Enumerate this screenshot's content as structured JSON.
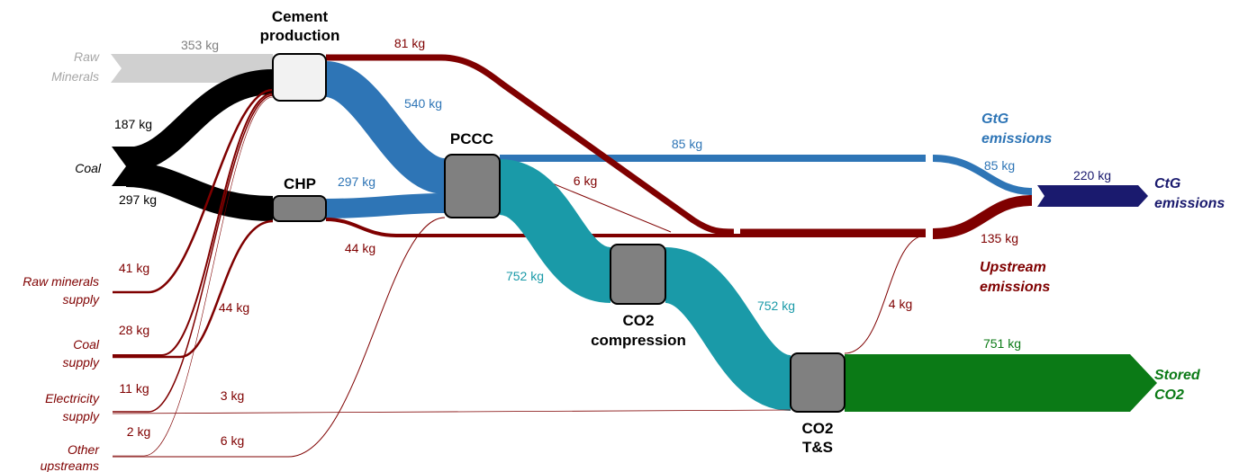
{
  "sources": [
    {
      "label": [
        "Raw",
        "Minerals"
      ]
    },
    {
      "label": [
        "Coal"
      ]
    },
    {
      "label": [
        "Raw minerals",
        "supply"
      ]
    },
    {
      "label": [
        "Coal",
        "supply"
      ]
    },
    {
      "label": [
        "Electricity",
        "supply"
      ]
    },
    {
      "label": [
        "Other",
        "upstreams"
      ]
    }
  ],
  "processes": [
    {
      "label": [
        "Cement",
        "production"
      ]
    },
    {
      "label": [
        "CHP"
      ]
    },
    {
      "label": [
        "PCCC"
      ]
    },
    {
      "label": [
        "CO2",
        "compression"
      ]
    },
    {
      "label": [
        "CO2",
        "T&S"
      ]
    }
  ],
  "outputs": [
    {
      "label": [
        "GtG",
        "emissions"
      ]
    },
    {
      "label": [
        "CtG",
        "emissions"
      ]
    },
    {
      "label": [
        "Upstream",
        "emissions"
      ]
    },
    {
      "label": [
        "Stored",
        "CO2"
      ]
    }
  ],
  "flows": [
    "353 kg",
    "81 kg",
    "540 kg",
    "187 kg",
    "297 kg",
    "297 kg",
    "85 kg",
    "85 kg",
    "6 kg",
    "220 kg",
    "44 kg",
    "135 kg",
    "41 kg",
    "752 kg",
    "752 kg",
    "4 kg",
    "44 kg",
    "28 kg",
    "751 kg",
    "11 kg",
    "3 kg",
    "2 kg",
    "6 kg"
  ]
}
